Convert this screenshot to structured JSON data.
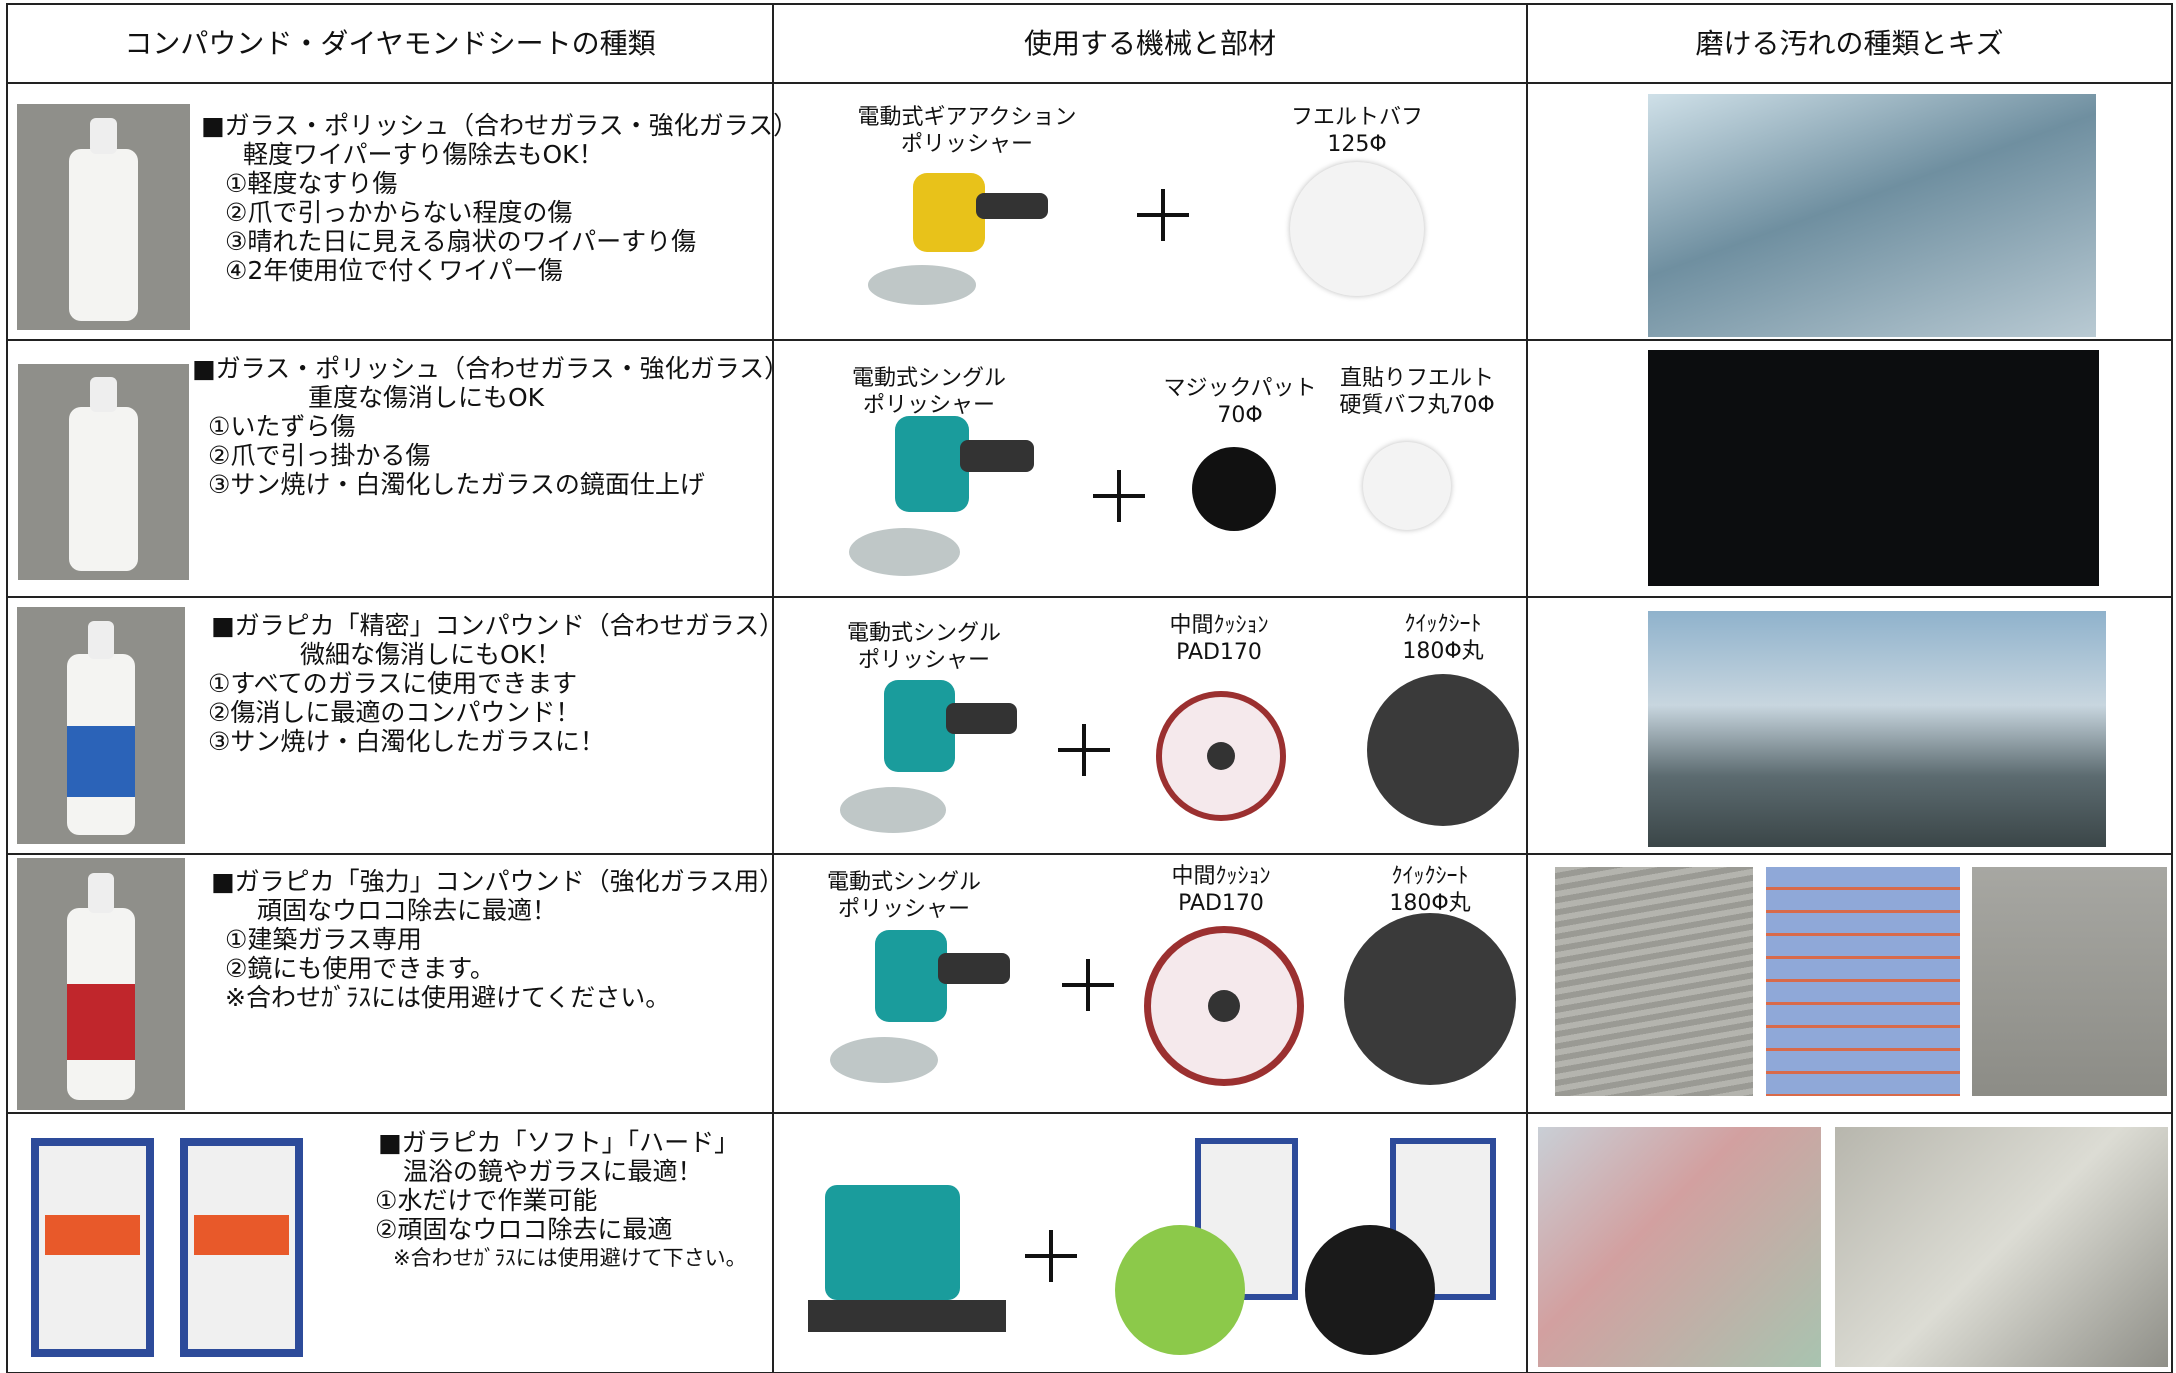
{
  "header": [
    "コンパウンド・ダイヤモンドシートの種類",
    "使用する機械と部材",
    "磨ける汚れの種類とキズ"
  ],
  "rows": [
    {
      "description": [
        "■ガラス・ポリッシュ（合わせガラス・強化ガラス）",
        "軽度ワイパーすり傷除去もOK！",
        "①軽度なすり傷",
        "②爪で引っかからない程度の傷",
        "③晴れた日に見える扇状のワイパーすり傷",
        "④2年使用位で付くワイパー傷"
      ],
      "tools": [
        [
          "電動式ギアアクション",
          "ポリッシャー"
        ],
        [
          "フエルトバフ",
          "125Φ"
        ]
      ]
    },
    {
      "description": [
        "■ガラス・ポリッシュ（合わせガラス・強化ガラス）",
        "重度な傷消しにもOK",
        "①いたずら傷",
        "②爪で引っ掛かる傷",
        "③サン焼け・白濁化したガラスの鏡面仕上げ"
      ],
      "tools": [
        [
          "電動式シングル",
          "ポリッシャー"
        ],
        [
          "マジックパット",
          "70Φ"
        ],
        [
          "直貼りフエルト",
          "硬質バフ丸70Φ"
        ]
      ]
    },
    {
      "description": [
        "■ガラピカ「精密」コンパウンド（合わせガラス）",
        "微細な傷消しにもOK！",
        "①すべてのガラスに使用できます",
        "②傷消しに最適のコンパウンド！",
        "③サン焼け・白濁化したガラスに！"
      ],
      "tools": [
        [
          "電動式シングル",
          "ポリッシャー"
        ],
        [
          "中間ｸｯｼｮﾝ",
          "PAD170"
        ],
        [
          "ｸｲｯｸｼｰﾄ",
          "180Φ丸"
        ]
      ]
    },
    {
      "description": [
        "■ガラピカ「強力」コンパウンド（強化ガラス用）",
        "頑固なウロコ除去に最適！",
        "①建築ガラス専用",
        "②鏡にも使用できます。",
        "※合わせｶﾞﾗｽには使用避けてください。"
      ],
      "tools": [
        [
          "電動式シングル",
          "ポリッシャー"
        ],
        [
          "中間ｸｯｼｮﾝ",
          "PAD170"
        ],
        [
          "ｸｲｯｸｼｰﾄ",
          "180Φ丸"
        ]
      ]
    },
    {
      "description": [
        "■ガラピカ「ソフト」「ハード」",
        "温浴の鏡やガラスに最適！",
        "①水だけで作業可能",
        "②頑固なウロコ除去に最適",
        "※合わせｶﾞﾗｽには使用避けて下さい。"
      ],
      "tools": []
    }
  ]
}
